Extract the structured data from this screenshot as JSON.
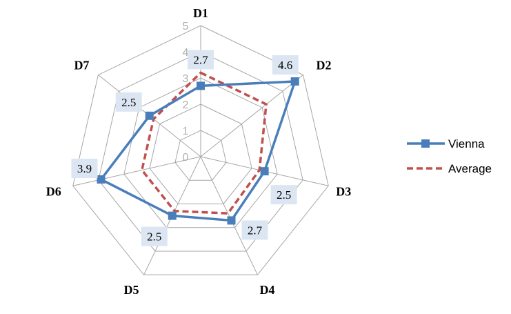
{
  "chart_data": {
    "type": "radar",
    "categories": [
      "D1",
      "D2",
      "D3",
      "D4",
      "D5",
      "D6",
      "D7"
    ],
    "r_range": [
      0,
      5
    ],
    "r_ticks": [
      "0",
      "1",
      "2",
      "3",
      "4",
      "5"
    ],
    "grid": true,
    "legend_position": "right",
    "series": [
      {
        "name": "Vienna",
        "values": [
          2.7,
          4.6,
          2.5,
          2.7,
          2.5,
          3.9,
          2.5
        ],
        "data_labels": [
          "2.7",
          "4.6",
          "2.5",
          "2.7",
          "2.5",
          "3.9",
          "2.5"
        ],
        "color": "#4a7ebb",
        "style": "solid-square-markers"
      },
      {
        "name": "Average",
        "values": [
          3.2,
          3.2,
          2.3,
          2.4,
          2.3,
          2.3,
          2.3
        ],
        "color": "#c0504d",
        "style": "dashed"
      }
    ]
  },
  "colors": {
    "grid": "#a6a6a6",
    "label_box": "#dce6f2"
  }
}
